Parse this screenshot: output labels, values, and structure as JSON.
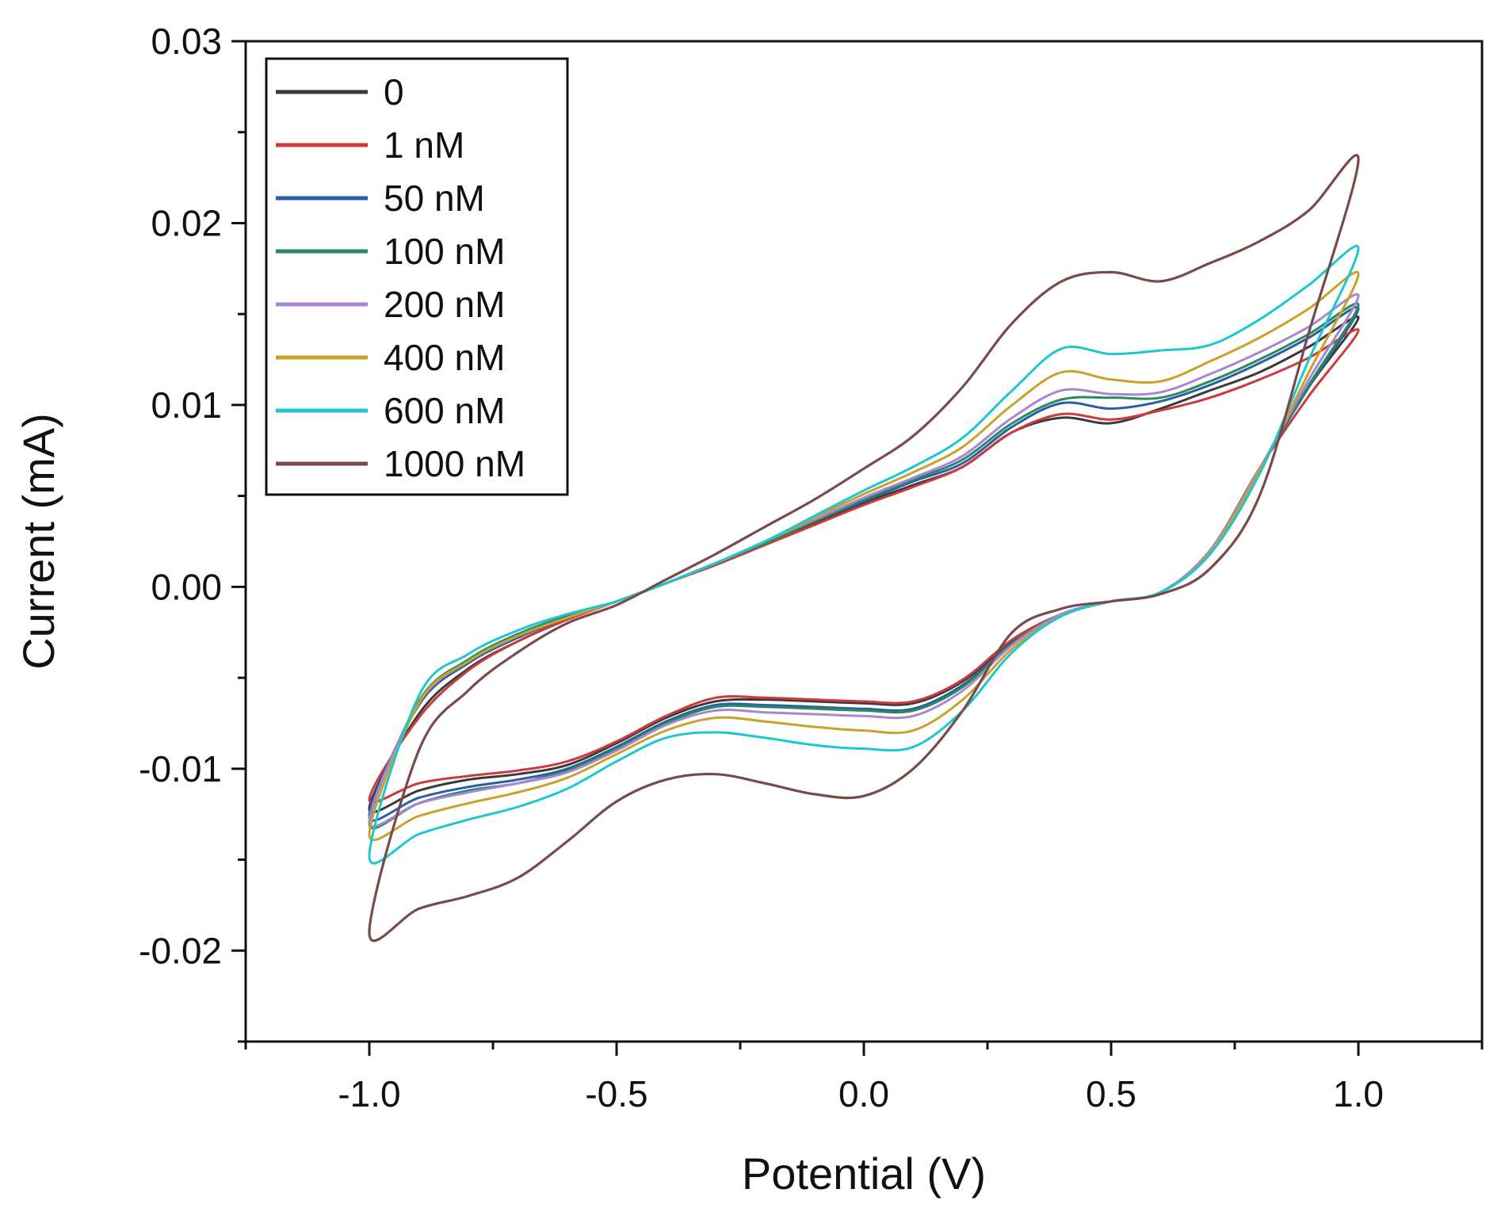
{
  "chart_data": {
    "type": "line",
    "title": "",
    "xlabel": "Potential (V)",
    "ylabel": "Current (mA)",
    "xlim": [
      -1.25,
      1.25
    ],
    "ylim": [
      -0.025,
      0.03
    ],
    "xticks": [
      -1.0,
      -0.5,
      0.0,
      0.5,
      1.0
    ],
    "xtick_labels": [
      "-1.0",
      "-0.5",
      "0.0",
      "0.5",
      "1.0"
    ],
    "yticks": [
      -0.02,
      -0.01,
      0.0,
      0.01,
      0.02,
      0.03
    ],
    "ytick_labels": [
      "-0.02",
      "-0.01",
      "0.00",
      "0.01",
      "0.02",
      "0.03"
    ],
    "grid": false,
    "legend_position": "top-left",
    "x_note": "Each series is a closed cyclic voltammogram: forward scan (-1.0 to 1.0 V) followed by reverse scan (1.0 to -1.0 V). Points listed in scan order.",
    "series": [
      {
        "name": "0",
        "color": "#3a3a3a",
        "x": [
          -1.0,
          -0.9,
          -0.8,
          -0.7,
          -0.6,
          -0.5,
          -0.4,
          -0.3,
          -0.2,
          -0.1,
          0.0,
          0.1,
          0.2,
          0.3,
          0.4,
          0.5,
          0.6,
          0.7,
          0.8,
          0.9,
          1.0,
          0.9,
          0.8,
          0.7,
          0.6,
          0.5,
          0.4,
          0.3,
          0.2,
          0.1,
          0.0,
          -0.1,
          -0.2,
          -0.3,
          -0.4,
          -0.5,
          -0.6,
          -0.7,
          -0.8,
          -0.9,
          -1.0
        ],
        "y": [
          -0.0122,
          -0.0112,
          -0.0106,
          -0.0103,
          -0.0098,
          -0.0086,
          -0.0072,
          -0.0063,
          -0.0062,
          -0.0063,
          -0.0064,
          -0.0064,
          -0.0052,
          -0.003,
          -0.0015,
          -0.0008,
          -0.0003,
          0.002,
          0.0065,
          0.011,
          0.0148,
          0.0132,
          0.0118,
          0.0108,
          0.0098,
          0.009,
          0.0093,
          0.0085,
          0.0066,
          0.0056,
          0.0046,
          0.0035,
          0.0024,
          0.0013,
          0.0002,
          -0.0008,
          -0.0018,
          -0.003,
          -0.0045,
          -0.007,
          -0.0122
        ]
      },
      {
        "name": "1 nM",
        "color": "#cc3b3b",
        "x": [
          -1.0,
          -0.9,
          -0.8,
          -0.7,
          -0.6,
          -0.5,
          -0.4,
          -0.3,
          -0.2,
          -0.1,
          0.0,
          0.1,
          0.2,
          0.3,
          0.4,
          0.5,
          0.6,
          0.7,
          0.8,
          0.9,
          1.0,
          0.9,
          0.8,
          0.7,
          0.6,
          0.5,
          0.4,
          0.3,
          0.2,
          0.1,
          0.0,
          -0.1,
          -0.2,
          -0.3,
          -0.4,
          -0.5,
          -0.6,
          -0.7,
          -0.8,
          -0.9,
          -1.0
        ],
        "y": [
          -0.0117,
          -0.0108,
          -0.0104,
          -0.0101,
          -0.0096,
          -0.0085,
          -0.0071,
          -0.0061,
          -0.0061,
          -0.0062,
          -0.0063,
          -0.0063,
          -0.0051,
          -0.0029,
          -0.0015,
          -0.0008,
          -0.0003,
          0.002,
          0.0065,
          0.0105,
          0.0141,
          0.0126,
          0.0114,
          0.0104,
          0.0097,
          0.0092,
          0.0095,
          0.0085,
          0.0066,
          0.0055,
          0.0045,
          0.0034,
          0.0023,
          0.0012,
          0.0002,
          -0.0008,
          -0.0018,
          -0.003,
          -0.0046,
          -0.0072,
          -0.0117
        ]
      },
      {
        "name": "50  nM",
        "color": "#2a5ea8",
        "x": [
          -1.0,
          -0.9,
          -0.8,
          -0.7,
          -0.6,
          -0.5,
          -0.4,
          -0.3,
          -0.2,
          -0.1,
          0.0,
          0.1,
          0.2,
          0.3,
          0.4,
          0.5,
          0.6,
          0.7,
          0.8,
          0.9,
          1.0,
          0.9,
          0.8,
          0.7,
          0.6,
          0.5,
          0.4,
          0.3,
          0.2,
          0.1,
          0.0,
          -0.1,
          -0.2,
          -0.3,
          -0.4,
          -0.5,
          -0.6,
          -0.7,
          -0.8,
          -0.9,
          -1.0
        ],
        "y": [
          -0.0126,
          -0.0116,
          -0.011,
          -0.0106,
          -0.01,
          -0.0088,
          -0.0074,
          -0.0065,
          -0.0065,
          -0.0066,
          -0.0067,
          -0.0067,
          -0.0054,
          -0.0031,
          -0.0015,
          -0.0008,
          -0.0003,
          0.002,
          0.0065,
          0.011,
          0.0153,
          0.0137,
          0.0123,
          0.0111,
          0.0102,
          0.0098,
          0.0101,
          0.0088,
          0.0068,
          0.0058,
          0.0047,
          0.0036,
          0.0024,
          0.0013,
          0.0002,
          -0.0008,
          -0.0017,
          -0.0028,
          -0.0042,
          -0.0065,
          -0.0126
        ]
      },
      {
        "name": "100 nM",
        "color": "#2a8a5c",
        "x": [
          -1.0,
          -0.9,
          -0.8,
          -0.7,
          -0.6,
          -0.5,
          -0.4,
          -0.3,
          -0.2,
          -0.1,
          0.0,
          0.1,
          0.2,
          0.3,
          0.4,
          0.5,
          0.6,
          0.7,
          0.8,
          0.9,
          1.0,
          0.9,
          0.8,
          0.7,
          0.6,
          0.5,
          0.4,
          0.3,
          0.2,
          0.1,
          0.0,
          -0.1,
          -0.2,
          -0.3,
          -0.4,
          -0.5,
          -0.6,
          -0.7,
          -0.8,
          -0.9,
          -1.0
        ],
        "y": [
          -0.013,
          -0.0119,
          -0.0112,
          -0.0108,
          -0.0101,
          -0.0089,
          -0.0075,
          -0.0066,
          -0.0066,
          -0.0067,
          -0.0068,
          -0.0068,
          -0.0055,
          -0.0031,
          -0.0015,
          -0.0008,
          -0.0003,
          0.002,
          0.0065,
          0.0111,
          0.0155,
          0.0139,
          0.0125,
          0.0113,
          0.0104,
          0.0104,
          0.0103,
          0.009,
          0.007,
          0.0059,
          0.0048,
          0.0036,
          0.0024,
          0.0013,
          0.0002,
          -0.0008,
          -0.0016,
          -0.0026,
          -0.004,
          -0.0063,
          -0.013
        ]
      },
      {
        "name": "200 nM",
        "color": "#a985d6",
        "x": [
          -1.0,
          -0.9,
          -0.8,
          -0.7,
          -0.6,
          -0.5,
          -0.4,
          -0.3,
          -0.2,
          -0.1,
          0.0,
          0.1,
          0.2,
          0.3,
          0.4,
          0.5,
          0.6,
          0.7,
          0.8,
          0.9,
          1.0,
          0.9,
          0.8,
          0.7,
          0.6,
          0.5,
          0.4,
          0.3,
          0.2,
          0.1,
          0.0,
          -0.1,
          -0.2,
          -0.3,
          -0.4,
          -0.5,
          -0.6,
          -0.7,
          -0.8,
          -0.9,
          -1.0
        ],
        "y": [
          -0.0129,
          -0.0119,
          -0.0113,
          -0.0108,
          -0.0102,
          -0.009,
          -0.0076,
          -0.0068,
          -0.0069,
          -0.007,
          -0.0071,
          -0.0071,
          -0.0057,
          -0.0032,
          -0.0015,
          -0.0008,
          -0.0003,
          0.002,
          0.0065,
          0.0114,
          0.016,
          0.0143,
          0.0129,
          0.0117,
          0.0107,
          0.0106,
          0.0108,
          0.0093,
          0.0072,
          0.006,
          0.0049,
          0.0037,
          0.0025,
          0.0013,
          0.0002,
          -0.0008,
          -0.0017,
          -0.0027,
          -0.0041,
          -0.0064,
          -0.0129
        ]
      },
      {
        "name": "400 nM",
        "color": "#c9a22a",
        "x": [
          -1.0,
          -0.9,
          -0.8,
          -0.7,
          -0.6,
          -0.5,
          -0.4,
          -0.3,
          -0.2,
          -0.1,
          0.0,
          0.1,
          0.2,
          0.3,
          0.4,
          0.5,
          0.6,
          0.7,
          0.8,
          0.9,
          1.0,
          0.9,
          0.8,
          0.7,
          0.6,
          0.5,
          0.4,
          0.3,
          0.2,
          0.1,
          0.0,
          -0.1,
          -0.2,
          -0.3,
          -0.4,
          -0.5,
          -0.6,
          -0.7,
          -0.8,
          -0.9,
          -1.0
        ],
        "y": [
          -0.0136,
          -0.0126,
          -0.0119,
          -0.0113,
          -0.0105,
          -0.0092,
          -0.0079,
          -0.0072,
          -0.0074,
          -0.0077,
          -0.0079,
          -0.0079,
          -0.0062,
          -0.0034,
          -0.0016,
          -0.0008,
          -0.0003,
          0.0019,
          0.0064,
          0.0118,
          0.0172,
          0.0153,
          0.0137,
          0.0124,
          0.0113,
          0.0114,
          0.0118,
          0.01,
          0.0077,
          0.0063,
          0.0051,
          0.0038,
          0.0025,
          0.0013,
          0.0002,
          -0.0008,
          -0.0017,
          -0.0027,
          -0.0041,
          -0.0064,
          -0.0136
        ]
      },
      {
        "name": "600 nM",
        "color": "#1ec6cf",
        "x": [
          -1.0,
          -0.9,
          -0.8,
          -0.7,
          -0.6,
          -0.5,
          -0.4,
          -0.3,
          -0.2,
          -0.1,
          0.0,
          0.1,
          0.2,
          0.3,
          0.4,
          0.5,
          0.6,
          0.7,
          0.8,
          0.9,
          1.0,
          0.9,
          0.8,
          0.7,
          0.6,
          0.5,
          0.4,
          0.3,
          0.2,
          0.1,
          0.0,
          -0.1,
          -0.2,
          -0.3,
          -0.4,
          -0.5,
          -0.6,
          -0.7,
          -0.8,
          -0.9,
          -1.0
        ],
        "y": [
          -0.0148,
          -0.0136,
          -0.0128,
          -0.0121,
          -0.0111,
          -0.0096,
          -0.0083,
          -0.008,
          -0.0083,
          -0.0087,
          -0.0089,
          -0.0088,
          -0.0068,
          -0.0036,
          -0.0016,
          -0.0008,
          -0.0003,
          0.0018,
          0.0062,
          0.0125,
          0.0186,
          0.0166,
          0.0147,
          0.0133,
          0.013,
          0.0128,
          0.0131,
          0.0108,
          0.0082,
          0.0066,
          0.0053,
          0.0039,
          0.0025,
          0.0013,
          0.0002,
          -0.0008,
          -0.0015,
          -0.0024,
          -0.0037,
          -0.006,
          -0.0148
        ]
      },
      {
        "name": "1000 nM",
        "color": "#7a4a4a",
        "x": [
          -1.0,
          -0.9,
          -0.8,
          -0.7,
          -0.6,
          -0.5,
          -0.4,
          -0.3,
          -0.2,
          -0.1,
          0.0,
          0.1,
          0.2,
          0.3,
          0.4,
          0.5,
          0.6,
          0.7,
          0.8,
          0.9,
          1.0,
          0.9,
          0.8,
          0.7,
          0.6,
          0.5,
          0.4,
          0.3,
          0.2,
          0.1,
          0.0,
          -0.1,
          -0.2,
          -0.3,
          -0.4,
          -0.5,
          -0.6,
          -0.7,
          -0.8,
          -0.9,
          -1.0
        ],
        "y": [
          -0.019,
          -0.0177,
          -0.017,
          -0.016,
          -0.014,
          -0.0118,
          -0.0106,
          -0.0103,
          -0.0108,
          -0.0114,
          -0.0115,
          -0.01,
          -0.0068,
          -0.0025,
          -0.0012,
          -0.0008,
          -0.0004,
          0.001,
          0.005,
          0.014,
          0.0235,
          0.0207,
          0.019,
          0.0178,
          0.0168,
          0.0173,
          0.0168,
          0.0145,
          0.011,
          0.0083,
          0.0065,
          0.0048,
          0.0033,
          0.0018,
          0.0004,
          -0.001,
          -0.002,
          -0.0036,
          -0.0057,
          -0.009,
          -0.019
        ]
      }
    ]
  }
}
